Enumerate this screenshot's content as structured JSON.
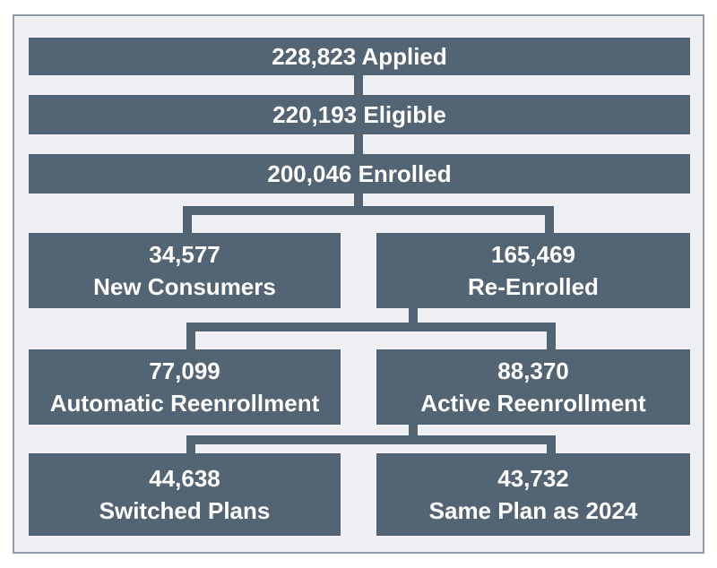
{
  "nodes": {
    "applied": {
      "text": "228,823 Applied"
    },
    "eligible": {
      "text": "220,193 Eligible"
    },
    "enrolled": {
      "text": "200,046 Enrolled"
    },
    "new_consumers": {
      "value": "34,577",
      "label": "New Consumers"
    },
    "re_enrolled": {
      "value": "165,469",
      "label": "Re-Enrolled"
    },
    "automatic": {
      "value": "77,099",
      "label": "Automatic Reenrollment"
    },
    "active": {
      "value": "88,370",
      "label": "Active Reenrollment"
    },
    "switched": {
      "value": "44,638",
      "label": "Switched Plans"
    },
    "same_plan": {
      "value": "43,732",
      "label": "Same Plan as 2024"
    }
  },
  "colors": {
    "box": "#536474",
    "background": "#eef0f3",
    "border": "#8f9aa6",
    "text": "#ffffff"
  }
}
